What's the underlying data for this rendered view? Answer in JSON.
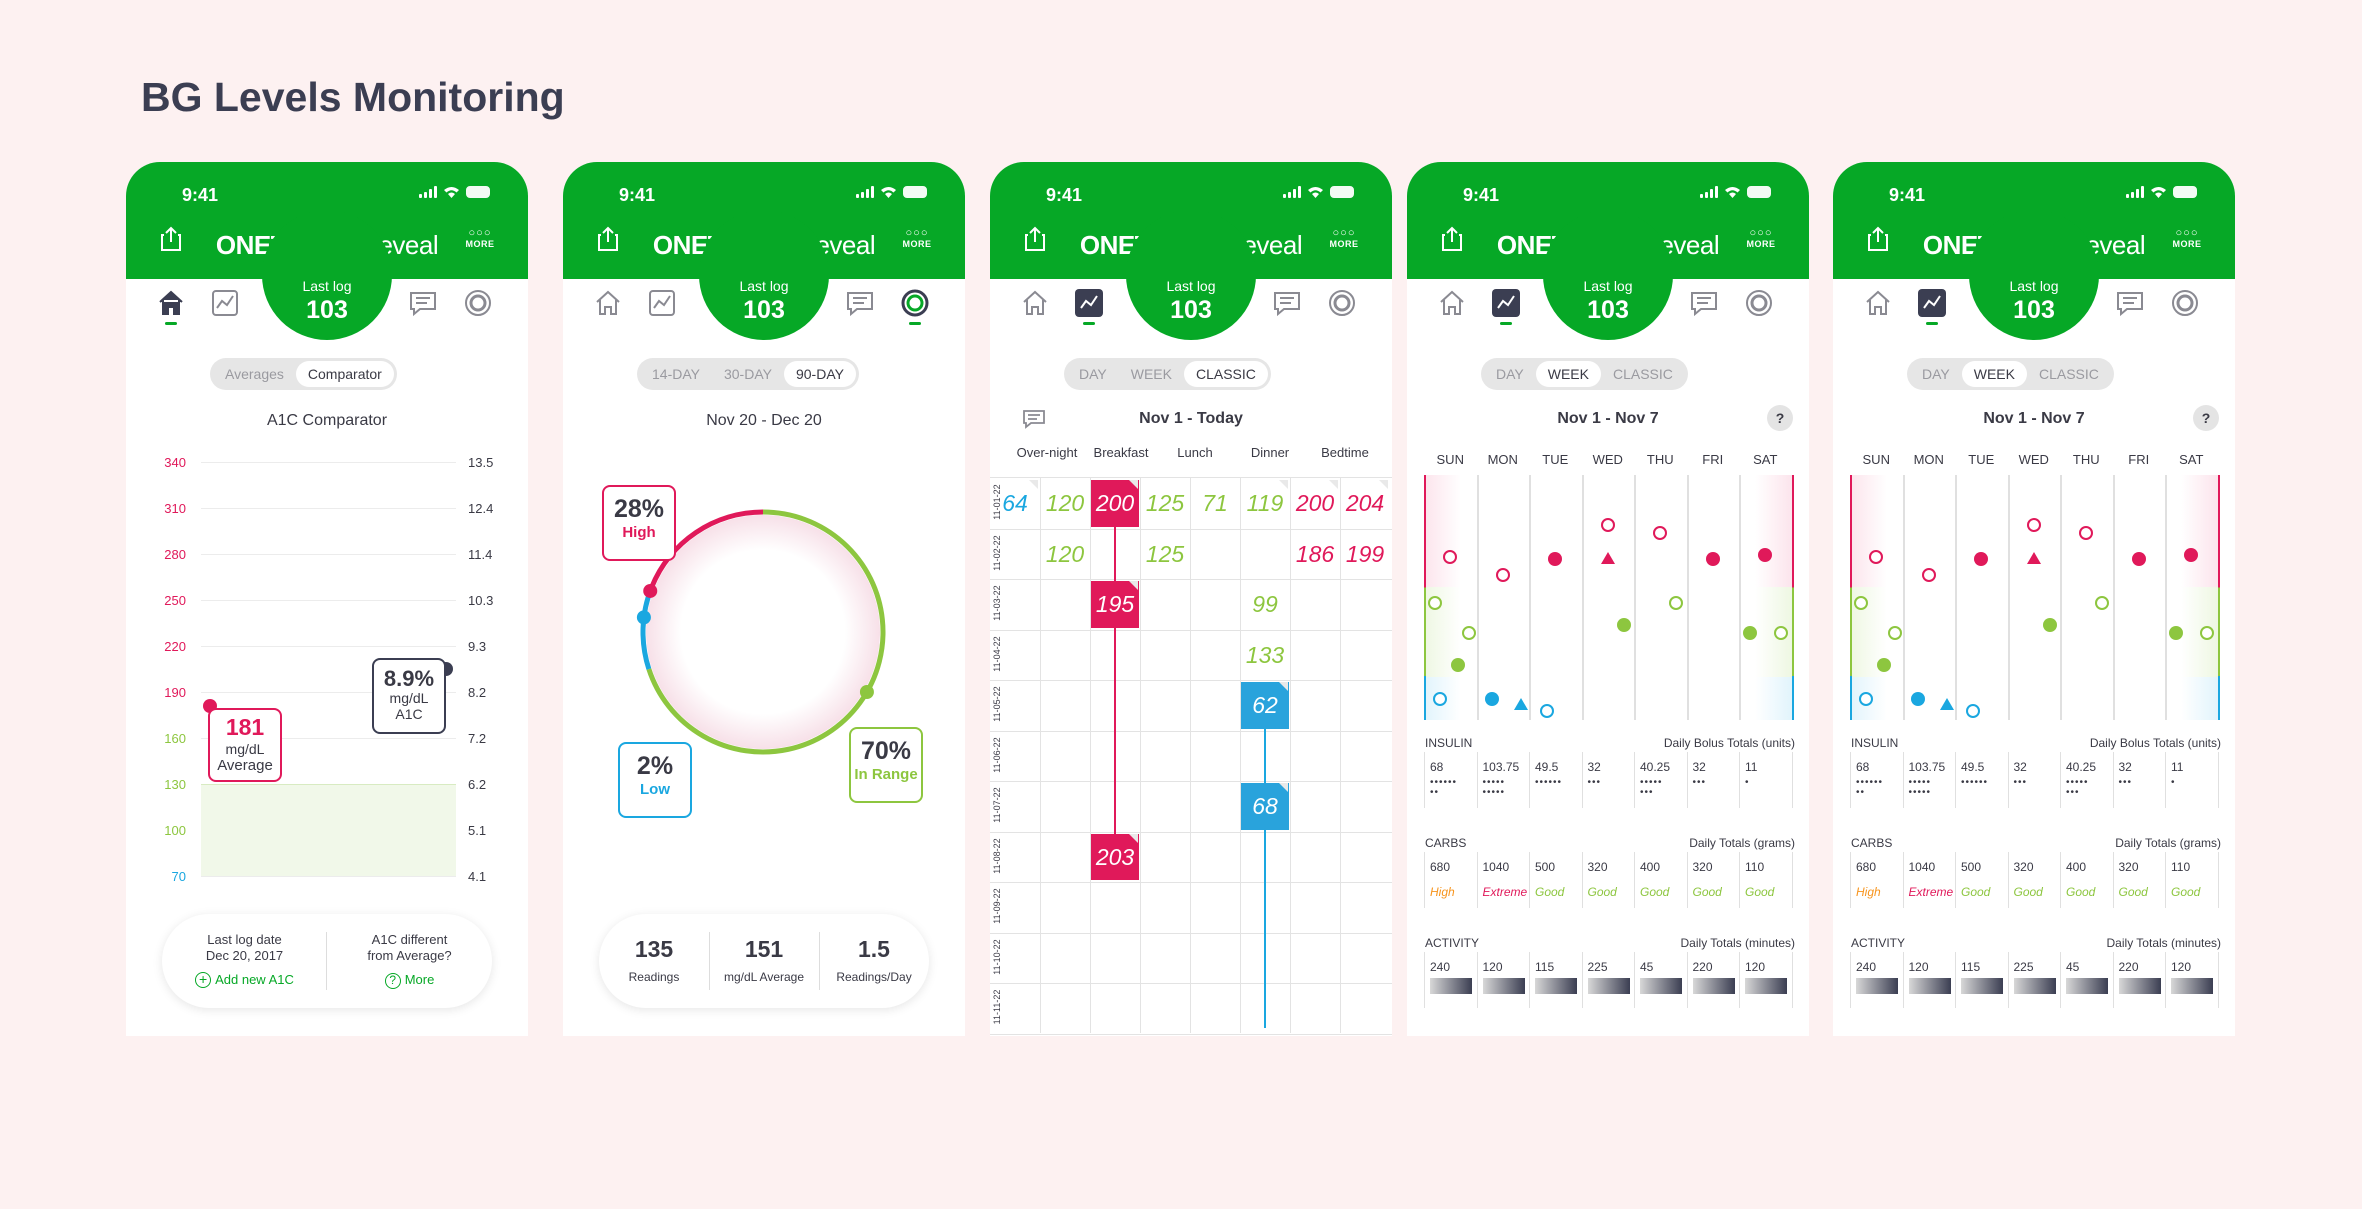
{
  "title": "BG Levels Monitoring",
  "colors": {
    "brand_green": "#06a826",
    "high_red": "#e0195a",
    "in_range_green": "#8dc63f",
    "low_blue": "#1aa7e0",
    "classic_blue": "#29a3dc"
  },
  "common": {
    "time": "9:41",
    "brand_bold": "ONETOUCH",
    "brand_light": "Reveal",
    "more_dots": "○○○",
    "more_label": "MORE",
    "last_log_label": "Last log",
    "last_log_value": "103"
  },
  "icons": [
    "share-icon",
    "home-icon",
    "trend-icon",
    "chat-icon",
    "circle-icon"
  ],
  "phone1": {
    "tabs": [
      "Averages",
      "Comparator"
    ],
    "active_tab": 1,
    "chart_title": "A1C Comparator",
    "chart_data": {
      "type": "line",
      "title": "A1C Comparator",
      "left_axis": [
        "340",
        "310",
        "280",
        "250",
        "220",
        "190",
        "160",
        "130",
        "100",
        "70"
      ],
      "right_axis": [
        "13.5",
        "12.4",
        "11.4",
        "10.3",
        "9.3",
        "8.2",
        "7.2",
        "6.2",
        "5.1",
        "4.1"
      ],
      "left_axis_colors": [
        "high",
        "high",
        "high",
        "high",
        "high",
        "high",
        "range",
        "range",
        "range",
        "low"
      ],
      "target_range": [
        70,
        130
      ],
      "series": [
        {
          "name": "Average",
          "values": [
            181
          ]
        },
        {
          "name": "A1C",
          "values": [
            8.9
          ]
        }
      ]
    },
    "avg_value": "181",
    "avg_unit": "mg/dL",
    "avg_label": "Average",
    "a1c_value": "8.9%",
    "a1c_unit": "mg/dL",
    "a1c_label": "A1C",
    "footer_left_l1": "Last  log date",
    "footer_left_l2": "Dec 20, 2017",
    "footer_left_link": "Add new A1C",
    "footer_right_l1": "A1C different",
    "footer_right_l2": "from Average?",
    "footer_right_link": "More"
  },
  "phone2": {
    "tabs": [
      "14-DAY",
      "30-DAY",
      "90-DAY"
    ],
    "active_tab": 2,
    "date_range": "Nov 20 - Dec 20",
    "chart_data": {
      "type": "pie",
      "slices": [
        {
          "name": "High",
          "value": 28
        },
        {
          "name": "Low",
          "value": 2
        },
        {
          "name": "In Range",
          "value": 70
        }
      ]
    },
    "high_pct": "28%",
    "high_label": "High",
    "low_pct": "2%",
    "low_label": "Low",
    "range_pct": "70%",
    "range_label": "In Range",
    "stats": [
      {
        "value": "135",
        "label": "Readings"
      },
      {
        "value": "151",
        "label": "mg/dL Average"
      },
      {
        "value": "1.5",
        "label": "Readings/Day"
      }
    ]
  },
  "phone3": {
    "tabs": [
      "DAY",
      "WEEK",
      "CLASSIC"
    ],
    "active_tab": 2,
    "date_range": "Nov 1 - Today",
    "columns": [
      "Over-night",
      "Breakfast",
      "Lunch",
      "Dinner",
      "Bedtime"
    ],
    "dates": [
      "11-01-22",
      "11-02-22",
      "11-03-22",
      "11-04-22",
      "11-05-22",
      "11-06-22",
      "11-07-22",
      "11-08-22",
      "11-09-22",
      "11-10-22",
      "11-11-22"
    ],
    "readings": [
      {
        "row": 0,
        "col": 0,
        "v": "64",
        "c": "low"
      },
      {
        "row": 0,
        "col": 1,
        "v": "120",
        "c": "range"
      },
      {
        "row": 0,
        "col": 2,
        "v": "200",
        "c": "high",
        "box": true
      },
      {
        "row": 0,
        "col": 3,
        "v": "125",
        "c": "range"
      },
      {
        "row": 0,
        "col": 4,
        "v": "71",
        "c": "range"
      },
      {
        "row": 0,
        "col": 5,
        "v": "119",
        "c": "range"
      },
      {
        "row": 0,
        "col": 6,
        "v": "200",
        "c": "high"
      },
      {
        "row": 0,
        "col": 7,
        "v": "204",
        "c": "high"
      },
      {
        "row": 1,
        "col": 1,
        "v": "120",
        "c": "range"
      },
      {
        "row": 1,
        "col": 3,
        "v": "125",
        "c": "range"
      },
      {
        "row": 1,
        "col": 6,
        "v": "186",
        "c": "high"
      },
      {
        "row": 1,
        "col": 7,
        "v": "199",
        "c": "high"
      },
      {
        "row": 2,
        "col": 2,
        "v": "195",
        "c": "high",
        "box": true
      },
      {
        "row": 2,
        "col": 5,
        "v": "99",
        "c": "range"
      },
      {
        "row": 3,
        "col": 5,
        "v": "133",
        "c": "range"
      },
      {
        "row": 4,
        "col": 5,
        "v": "62",
        "c": "low",
        "box": true
      },
      {
        "row": 6,
        "col": 5,
        "v": "68",
        "c": "low",
        "box": true
      },
      {
        "row": 7,
        "col": 2,
        "v": "203",
        "c": "high",
        "box": true
      }
    ]
  },
  "week": {
    "tabs": [
      "DAY",
      "WEEK",
      "CLASSIC"
    ],
    "active_tab": 1,
    "date_range": "Nov 1 - Nov 7",
    "help": "?",
    "days": [
      "SUN",
      "MON",
      "TUE",
      "WED",
      "THU",
      "FRI",
      "SAT"
    ],
    "insulin_label": "INSULIN",
    "insulin_right": "Daily Bolus Totals (units)",
    "insulin": [
      "68",
      "103.75",
      "49.5",
      "32",
      "40.25",
      "32",
      "11"
    ],
    "insulin_dots": [
      "••••••\n••",
      "•••••\n•••••",
      "••••••",
      "•••",
      "•••••\n•••",
      "•••",
      "•"
    ],
    "carbs_label": "CARBS",
    "carbs_right": "Daily Totals (grams)",
    "carbs": [
      "680",
      "1040",
      "500",
      "320",
      "400",
      "320",
      "110"
    ],
    "carbs_status": [
      "High",
      "Extreme",
      "Good",
      "Good",
      "Good",
      "Good",
      "Good"
    ],
    "activity_label": "ACTIVITY",
    "activity_right": "Daily Totals (minutes)",
    "activity": [
      "240",
      "120",
      "115",
      "225",
      "45",
      "220",
      "120"
    ]
  }
}
